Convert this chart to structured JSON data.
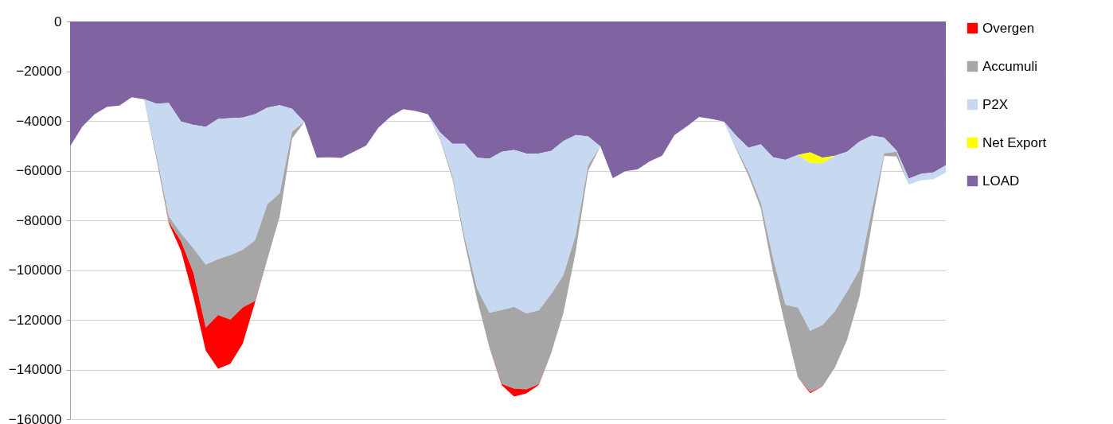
{
  "chart_data": {
    "type": "area",
    "stacked": true,
    "categories": [
      null,
      null,
      null,
      null,
      null,
      null,
      null,
      null,
      null,
      null,
      null,
      null,
      null,
      null,
      null,
      null,
      null,
      null,
      null,
      null,
      null,
      null,
      null,
      null,
      null,
      null,
      null,
      null,
      null,
      null,
      null,
      null,
      null,
      null,
      null,
      null,
      null,
      null,
      null,
      null,
      null,
      null,
      null,
      null,
      null,
      null,
      null,
      null,
      null,
      null,
      null,
      null,
      null,
      null,
      null,
      null,
      null,
      null,
      null,
      null,
      null,
      null,
      null,
      null,
      null,
      null,
      null,
      null,
      null,
      null,
      null,
      null
    ],
    "series": [
      {
        "name": "LOAD",
        "color": "#8064a2",
        "values": [
          -50200,
          -42200,
          -37300,
          -34300,
          -33800,
          -30500,
          -31300,
          -33000,
          -32800,
          -40200,
          -41600,
          -42400,
          -39200,
          -38900,
          -38600,
          -37300,
          -34600,
          -33700,
          -35100,
          -40500,
          -54800,
          -54600,
          -54900,
          -52400,
          -49900,
          -42700,
          -38200,
          -35300,
          -36000,
          -37300,
          -44600,
          -49200,
          -49200,
          -54800,
          -55200,
          -52400,
          -51700,
          -53100,
          -53100,
          -52100,
          -48100,
          -45700,
          -46200,
          -50200,
          -63000,
          -60200,
          -59500,
          -56200,
          -54000,
          -45700,
          -42200,
          -38400,
          -39200,
          -40200,
          -45900,
          -50800,
          -49400,
          -54600,
          -55700,
          -53700,
          -52600,
          -54800,
          -54000,
          -52400,
          -48300,
          -45900,
          -46700,
          -51900,
          -63200,
          -61300,
          -60700,
          -57800
        ]
      },
      {
        "name": "Net Export",
        "color": "#ffff00",
        "values": [
          0,
          0,
          0,
          0,
          0,
          0,
          0,
          0,
          0,
          0,
          0,
          0,
          0,
          0,
          0,
          0,
          0,
          0,
          0,
          0,
          0,
          0,
          0,
          0,
          0,
          0,
          0,
          0,
          0,
          0,
          0,
          0,
          0,
          0,
          0,
          0,
          0,
          0,
          0,
          0,
          0,
          0,
          0,
          0,
          0,
          0,
          0,
          0,
          0,
          0,
          0,
          0,
          0,
          0,
          0,
          0,
          0,
          0,
          0,
          0,
          -4300,
          -2200,
          0,
          0,
          0,
          0,
          0,
          0,
          0,
          0,
          0,
          0
        ]
      },
      {
        "name": "P2X",
        "color": "#c6d9f1",
        "values": [
          0,
          0,
          0,
          0,
          0,
          0,
          0,
          -20500,
          -45600,
          -45100,
          -49700,
          -55400,
          -56400,
          -55100,
          -53200,
          -50800,
          -38900,
          -35400,
          -9200,
          0,
          0,
          0,
          0,
          0,
          0,
          0,
          0,
          0,
          0,
          0,
          -2400,
          -13000,
          -37800,
          -52700,
          -62000,
          -63700,
          -63100,
          -64300,
          -63100,
          -57600,
          -54000,
          -40200,
          -11700,
          0,
          0,
          0,
          0,
          0,
          0,
          0,
          0,
          0,
          0,
          0,
          -4900,
          -9700,
          -23500,
          -41000,
          -58300,
          -61300,
          -67600,
          -65100,
          -62600,
          -56200,
          -51600,
          -30200,
          -6300,
          -500,
          -2400,
          -2500,
          -2700,
          -3000
        ]
      },
      {
        "name": "Accumuli",
        "color": "#a6a6a6",
        "values": [
          0,
          0,
          0,
          0,
          0,
          0,
          0,
          -1600,
          -2200,
          -3200,
          -9700,
          -25400,
          -22500,
          -25900,
          -23200,
          -24300,
          -22100,
          -9200,
          -2700,
          0,
          0,
          0,
          0,
          0,
          0,
          0,
          0,
          0,
          0,
          0,
          -500,
          -1100,
          -2200,
          -4300,
          -14000,
          -29700,
          -32900,
          -30600,
          -29700,
          -23800,
          -15100,
          -6500,
          -2200,
          0,
          0,
          0,
          0,
          0,
          0,
          0,
          0,
          0,
          0,
          0,
          -500,
          -1600,
          -2200,
          -5400,
          -8600,
          -28100,
          -24500,
          -24800,
          -22700,
          -19400,
          -10800,
          -5400,
          -1100,
          -1900,
          0,
          0,
          0,
          0
        ]
      },
      {
        "name": "Overgen",
        "color": "#ff0000",
        "values": [
          0,
          0,
          0,
          0,
          0,
          0,
          0,
          0,
          -500,
          -3800,
          -9700,
          -9200,
          -21600,
          -17800,
          -14600,
          -500,
          0,
          0,
          0,
          0,
          0,
          0,
          0,
          0,
          0,
          0,
          0,
          0,
          0,
          0,
          0,
          0,
          0,
          0,
          0,
          -500,
          -3200,
          -1600,
          -300,
          0,
          0,
          0,
          0,
          0,
          0,
          0,
          0,
          0,
          0,
          0,
          0,
          0,
          0,
          0,
          0,
          0,
          0,
          0,
          0,
          0,
          -500,
          0,
          0,
          0,
          0,
          0,
          0,
          0,
          0,
          0,
          0,
          0
        ]
      }
    ],
    "ylim": [
      -160000,
      0
    ],
    "yticks": [
      -160000,
      -140000,
      -120000,
      -100000,
      -80000,
      -60000,
      -40000,
      -20000,
      0
    ],
    "grid": "y",
    "legend": "right",
    "tick_labels": "y"
  }
}
